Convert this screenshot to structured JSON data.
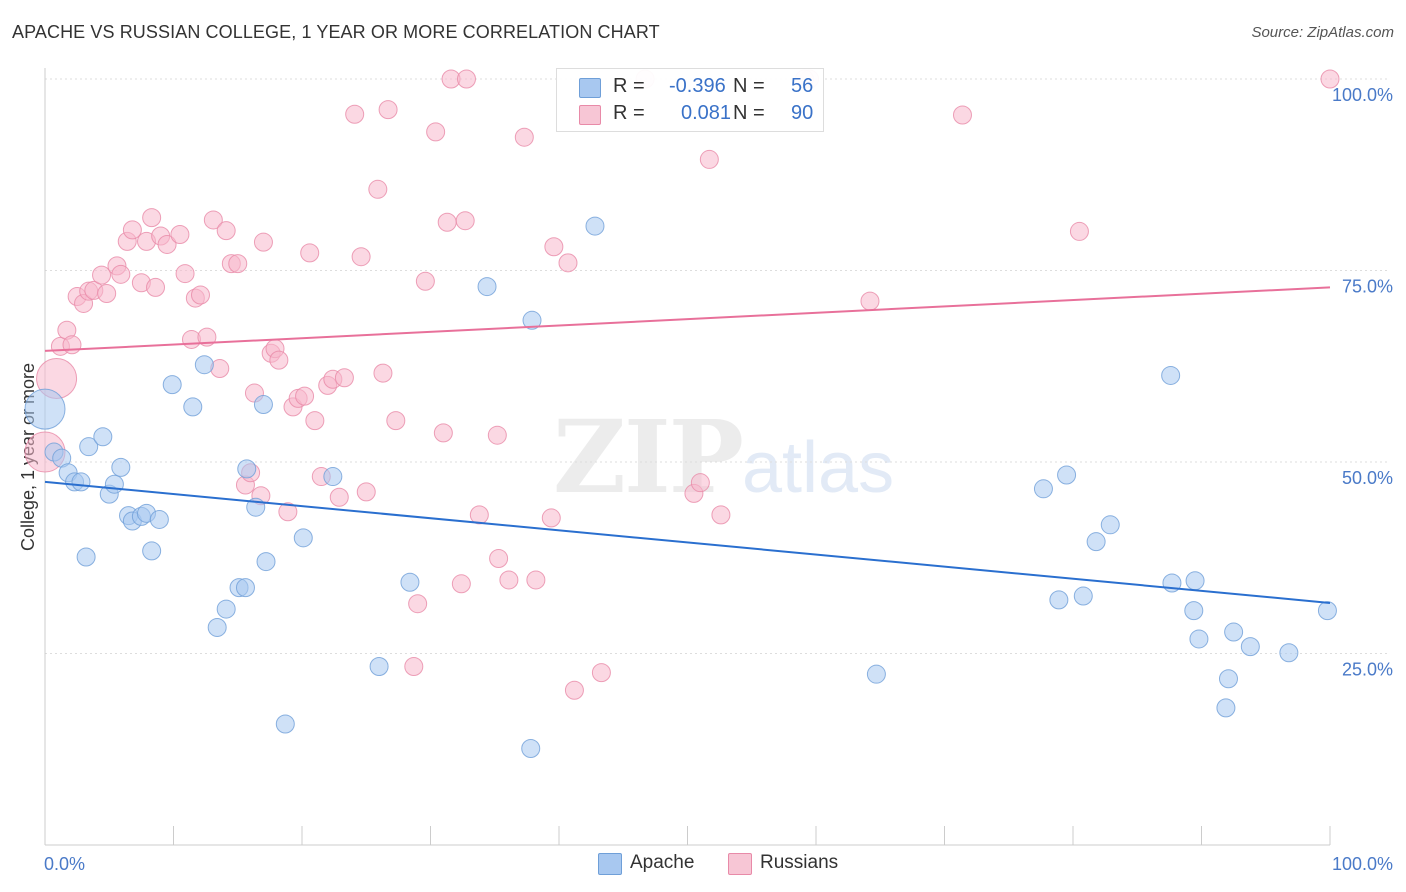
{
  "header": {
    "title": "APACHE VS RUSSIAN COLLEGE, 1 YEAR OR MORE CORRELATION CHART",
    "source": "Source: ZipAtlas.com"
  },
  "watermark": {
    "part1": "ZIP",
    "part2": "atlas"
  },
  "stats_legend": {
    "rows": [
      {
        "r_label": "R =",
        "r_value": "-0.396",
        "n_label": "N =",
        "n_value": "56"
      },
      {
        "r_label": "R =",
        "r_value": "0.081",
        "n_label": "N =",
        "n_value": "90"
      }
    ]
  },
  "bottom_legend": {
    "apache": "Apache",
    "russians": "Russians"
  },
  "colors": {
    "apache_fill": "#a8c8f0",
    "apache_stroke": "#6f9fd8",
    "apache_line": "#2a6fcf",
    "russians_fill": "#f7b8cc",
    "russians_stroke": "#e88aa8",
    "russians_line": "#e8709a",
    "axis_label": "#4a7ac8",
    "grid": "#dddddd"
  },
  "chart_data": {
    "type": "scatter",
    "title": "APACHE VS RUSSIAN COLLEGE, 1 YEAR OR MORE CORRELATION CHART",
    "xlabel": "",
    "ylabel": "College, 1 year or more",
    "xlim": [
      0,
      100
    ],
    "ylim": [
      0,
      105
    ],
    "x_tick_labels": [
      "0.0%",
      "100.0%"
    ],
    "y_ticks": [
      25,
      50,
      75,
      100
    ],
    "y_tick_labels": [
      "25.0%",
      "50.0%",
      "75.0%",
      "100.0%"
    ],
    "grid": "horizontal dashed",
    "legend": "bottom-center",
    "series": [
      {
        "name": "Apache",
        "R": -0.396,
        "N": 56,
        "trend": {
          "x": [
            0,
            100
          ],
          "y": [
            47.4,
            31.6
          ]
        },
        "points": [
          {
            "x": 0.0,
            "y": 56.9,
            "big": true
          },
          {
            "x": 0.7,
            "y": 51.3
          },
          {
            "x": 1.3,
            "y": 50.5
          },
          {
            "x": 1.8,
            "y": 48.6
          },
          {
            "x": 2.3,
            "y": 47.4
          },
          {
            "x": 2.8,
            "y": 47.4
          },
          {
            "x": 3.2,
            "y": 37.6
          },
          {
            "x": 3.4,
            "y": 52.0
          },
          {
            "x": 4.5,
            "y": 53.3
          },
          {
            "x": 5.0,
            "y": 45.8
          },
          {
            "x": 5.4,
            "y": 47.1
          },
          {
            "x": 5.9,
            "y": 49.3
          },
          {
            "x": 6.5,
            "y": 43.0
          },
          {
            "x": 6.8,
            "y": 42.3
          },
          {
            "x": 7.5,
            "y": 42.9
          },
          {
            "x": 7.9,
            "y": 43.3
          },
          {
            "x": 8.3,
            "y": 38.4
          },
          {
            "x": 8.9,
            "y": 42.5
          },
          {
            "x": 9.9,
            "y": 60.1
          },
          {
            "x": 11.5,
            "y": 57.2
          },
          {
            "x": 12.4,
            "y": 62.7
          },
          {
            "x": 13.4,
            "y": 28.4
          },
          {
            "x": 14.1,
            "y": 30.8
          },
          {
            "x": 15.1,
            "y": 33.6
          },
          {
            "x": 15.6,
            "y": 33.6
          },
          {
            "x": 15.7,
            "y": 49.1
          },
          {
            "x": 16.4,
            "y": 44.1
          },
          {
            "x": 17.0,
            "y": 57.5
          },
          {
            "x": 17.2,
            "y": 37.0
          },
          {
            "x": 18.7,
            "y": 15.8
          },
          {
            "x": 20.1,
            "y": 40.1
          },
          {
            "x": 22.4,
            "y": 48.1
          },
          {
            "x": 26.0,
            "y": 23.3
          },
          {
            "x": 28.4,
            "y": 34.3
          },
          {
            "x": 34.4,
            "y": 72.9
          },
          {
            "x": 37.8,
            "y": 12.6
          },
          {
            "x": 37.9,
            "y": 68.5
          },
          {
            "x": 42.8,
            "y": 80.8
          },
          {
            "x": 64.7,
            "y": 22.3
          },
          {
            "x": 77.7,
            "y": 46.5
          },
          {
            "x": 78.9,
            "y": 32.0
          },
          {
            "x": 79.5,
            "y": 48.3
          },
          {
            "x": 80.8,
            "y": 32.5
          },
          {
            "x": 81.8,
            "y": 39.6
          },
          {
            "x": 82.9,
            "y": 41.8
          },
          {
            "x": 87.6,
            "y": 61.3
          },
          {
            "x": 87.7,
            "y": 34.2
          },
          {
            "x": 89.4,
            "y": 30.6
          },
          {
            "x": 89.5,
            "y": 34.5
          },
          {
            "x": 89.8,
            "y": 26.9
          },
          {
            "x": 91.9,
            "y": 17.9
          },
          {
            "x": 92.1,
            "y": 21.7
          },
          {
            "x": 92.5,
            "y": 27.8
          },
          {
            "x": 93.8,
            "y": 25.9
          },
          {
            "x": 96.8,
            "y": 25.1
          },
          {
            "x": 99.8,
            "y": 30.6
          }
        ]
      },
      {
        "name": "Russians",
        "R": 0.081,
        "N": 90,
        "trend": {
          "x": [
            0,
            100
          ],
          "y": [
            64.5,
            72.8
          ]
        },
        "points": [
          {
            "x": 0.0,
            "y": 51.3,
            "big": true
          },
          {
            "x": 0.9,
            "y": 60.9,
            "big": true
          },
          {
            "x": 1.2,
            "y": 65.1
          },
          {
            "x": 1.7,
            "y": 67.2
          },
          {
            "x": 2.1,
            "y": 65.3
          },
          {
            "x": 2.5,
            "y": 71.6
          },
          {
            "x": 3.0,
            "y": 70.7
          },
          {
            "x": 3.4,
            "y": 72.3
          },
          {
            "x": 3.8,
            "y": 72.4
          },
          {
            "x": 4.4,
            "y": 74.4
          },
          {
            "x": 4.8,
            "y": 72.0
          },
          {
            "x": 5.6,
            "y": 75.6
          },
          {
            "x": 5.9,
            "y": 74.5
          },
          {
            "x": 6.4,
            "y": 78.8
          },
          {
            "x": 6.8,
            "y": 80.3
          },
          {
            "x": 7.5,
            "y": 73.4
          },
          {
            "x": 7.9,
            "y": 78.8
          },
          {
            "x": 8.3,
            "y": 81.9
          },
          {
            "x": 8.6,
            "y": 72.8
          },
          {
            "x": 9.0,
            "y": 79.5
          },
          {
            "x": 9.5,
            "y": 78.4
          },
          {
            "x": 10.5,
            "y": 79.7
          },
          {
            "x": 10.9,
            "y": 74.6
          },
          {
            "x": 11.4,
            "y": 66.0
          },
          {
            "x": 11.7,
            "y": 71.4
          },
          {
            "x": 12.1,
            "y": 71.8
          },
          {
            "x": 12.6,
            "y": 66.3
          },
          {
            "x": 13.1,
            "y": 81.6
          },
          {
            "x": 13.6,
            "y": 62.2
          },
          {
            "x": 14.1,
            "y": 80.2
          },
          {
            "x": 14.5,
            "y": 75.9
          },
          {
            "x": 15.0,
            "y": 75.9
          },
          {
            "x": 15.6,
            "y": 47.0
          },
          {
            "x": 16.0,
            "y": 48.6
          },
          {
            "x": 16.3,
            "y": 59.0
          },
          {
            "x": 16.8,
            "y": 45.6
          },
          {
            "x": 17.0,
            "y": 78.7
          },
          {
            "x": 17.6,
            "y": 64.2
          },
          {
            "x": 17.9,
            "y": 64.8
          },
          {
            "x": 18.2,
            "y": 63.3
          },
          {
            "x": 18.9,
            "y": 43.5
          },
          {
            "x": 19.3,
            "y": 57.2
          },
          {
            "x": 19.7,
            "y": 58.3
          },
          {
            "x": 20.2,
            "y": 58.6
          },
          {
            "x": 20.6,
            "y": 77.3
          },
          {
            "x": 21.0,
            "y": 55.4
          },
          {
            "x": 21.5,
            "y": 48.1
          },
          {
            "x": 22.0,
            "y": 60.0
          },
          {
            "x": 22.4,
            "y": 60.8
          },
          {
            "x": 22.9,
            "y": 45.4
          },
          {
            "x": 23.3,
            "y": 61.0
          },
          {
            "x": 24.1,
            "y": 95.4
          },
          {
            "x": 24.6,
            "y": 76.8
          },
          {
            "x": 25.0,
            "y": 46.1
          },
          {
            "x": 25.9,
            "y": 85.6
          },
          {
            "x": 26.3,
            "y": 61.6
          },
          {
            "x": 26.7,
            "y": 96.0
          },
          {
            "x": 27.3,
            "y": 55.4
          },
          {
            "x": 28.7,
            "y": 23.3
          },
          {
            "x": 29.0,
            "y": 31.5
          },
          {
            "x": 29.6,
            "y": 73.6
          },
          {
            "x": 30.4,
            "y": 93.1
          },
          {
            "x": 31.0,
            "y": 53.8
          },
          {
            "x": 31.3,
            "y": 81.3
          },
          {
            "x": 31.6,
            "y": 100.0
          },
          {
            "x": 32.4,
            "y": 34.1
          },
          {
            "x": 32.7,
            "y": 81.5
          },
          {
            "x": 32.8,
            "y": 100.0
          },
          {
            "x": 33.8,
            "y": 43.1
          },
          {
            "x": 35.2,
            "y": 53.5
          },
          {
            "x": 35.3,
            "y": 37.4
          },
          {
            "x": 36.1,
            "y": 34.6
          },
          {
            "x": 37.3,
            "y": 92.4
          },
          {
            "x": 38.2,
            "y": 34.6
          },
          {
            "x": 39.4,
            "y": 42.7
          },
          {
            "x": 39.6,
            "y": 78.1
          },
          {
            "x": 40.7,
            "y": 76.0
          },
          {
            "x": 41.2,
            "y": 20.2
          },
          {
            "x": 43.3,
            "y": 22.5
          },
          {
            "x": 46.7,
            "y": 100.0
          },
          {
            "x": 50.5,
            "y": 45.9
          },
          {
            "x": 51.0,
            "y": 47.3
          },
          {
            "x": 51.7,
            "y": 89.5
          },
          {
            "x": 52.6,
            "y": 43.1
          },
          {
            "x": 59.5,
            "y": 100.0
          },
          {
            "x": 64.2,
            "y": 71.0
          },
          {
            "x": 71.4,
            "y": 95.3
          },
          {
            "x": 80.5,
            "y": 80.1
          },
          {
            "x": 100.0,
            "y": 100.0
          },
          {
            "x": 59.1,
            "y": 100.0
          }
        ]
      }
    ]
  }
}
